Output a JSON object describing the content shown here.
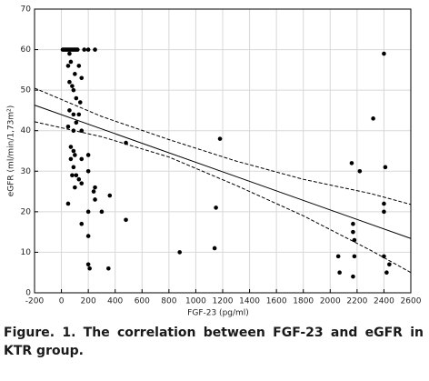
{
  "chart_data": {
    "type": "scatter",
    "x_label": "FGF-23 (pg/ml)",
    "y_label": "eGFR (ml/min/1,73m²)",
    "xlim": [
      -200,
      2600
    ],
    "xticks": [
      -200,
      0,
      200,
      400,
      600,
      800,
      1000,
      1200,
      1400,
      1600,
      1800,
      2000,
      2200,
      2400,
      2600
    ],
    "ylim": [
      0,
      70
    ],
    "yticks": [
      0,
      10,
      20,
      30,
      40,
      50,
      60,
      70
    ],
    "grid": true,
    "series": [
      {
        "type": "scatter",
        "color": "#000000",
        "x": [
          10,
          20,
          30,
          40,
          50,
          60,
          70,
          80,
          90,
          100,
          110,
          120,
          170,
          200,
          250,
          60,
          70,
          50,
          130,
          150,
          100,
          60,
          80,
          90,
          110,
          140,
          60,
          90,
          130,
          110,
          50,
          90,
          150,
          70,
          90,
          100,
          200,
          70,
          150,
          90,
          200,
          80,
          110,
          130,
          150,
          50,
          100,
          250,
          240,
          250,
          200,
          300,
          150,
          360,
          200,
          200,
          210,
          350,
          480,
          480,
          880,
          1140,
          1150,
          1180,
          2060,
          2070,
          2160,
          2170,
          2170,
          2180,
          2180,
          2170,
          2220,
          2320,
          2400,
          2410,
          2400,
          2400,
          2400,
          2420,
          2440
        ],
        "values": [
          60,
          60,
          60,
          60,
          60,
          60,
          60,
          60,
          60,
          60,
          60,
          60,
          60,
          60,
          60,
          59,
          57,
          56,
          56,
          53,
          54,
          52,
          51,
          50,
          48,
          47,
          45,
          44,
          44,
          42,
          41,
          40,
          40,
          36,
          35,
          34,
          34,
          33,
          33,
          31,
          30,
          29,
          29,
          28,
          27,
          22,
          26,
          26,
          25,
          23,
          20,
          20,
          17,
          24,
          14,
          7,
          6,
          6,
          37,
          18,
          10,
          11,
          21,
          38,
          9,
          5,
          32,
          17,
          15,
          13,
          9,
          4,
          30,
          43,
          59,
          31,
          22,
          20,
          9,
          5,
          7
        ]
      },
      {
        "type": "line",
        "dash": false,
        "color": "#000000",
        "x": [
          -200,
          2600
        ],
        "values": [
          46.3,
          13.4
        ]
      },
      {
        "type": "line",
        "dash": true,
        "color": "#000000",
        "x": [
          -200,
          300,
          800,
          1300,
          1800,
          2300,
          2600
        ],
        "values": [
          50.5,
          43.5,
          37.8,
          32.5,
          28,
          24.5,
          21.8
        ]
      },
      {
        "type": "line",
        "dash": true,
        "color": "#000000",
        "x": [
          -200,
          300,
          800,
          1300,
          1800,
          2300,
          2600
        ],
        "values": [
          42.2,
          38.5,
          33.5,
          26.5,
          19,
          10.5,
          5
        ]
      }
    ]
  },
  "caption": "Figure. 1. The correlation between FGF-23 and eGFR in KTR group."
}
